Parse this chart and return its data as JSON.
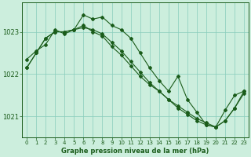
{
  "title": "Graphe pression niveau de la mer (hPa)",
  "background_color": "#cceedd",
  "grid_color": "#88ccbb",
  "line_color": "#1a5c1a",
  "xlim": [
    -0.5,
    23.5
  ],
  "ylim": [
    1020.5,
    1023.7
  ],
  "yticks": [
    1021,
    1022,
    1023
  ],
  "xticks": [
    0,
    1,
    2,
    3,
    4,
    5,
    6,
    7,
    8,
    9,
    10,
    11,
    12,
    13,
    14,
    15,
    16,
    17,
    18,
    19,
    20,
    21,
    22,
    23
  ],
  "series1_x": [
    0,
    1,
    2,
    3,
    4,
    5,
    6,
    7,
    8,
    9,
    10,
    11,
    12,
    13,
    14,
    15,
    16,
    17,
    18,
    19,
    20,
    21,
    22,
    23
  ],
  "series1_y": [
    1022.15,
    1022.5,
    1022.85,
    1023.0,
    1023.0,
    1023.05,
    1023.4,
    1023.3,
    1023.35,
    1023.15,
    1023.05,
    1022.85,
    1022.5,
    1022.15,
    1021.85,
    1021.6,
    1021.95,
    1021.4,
    1021.1,
    1020.8,
    1020.75,
    1021.15,
    1021.5,
    1021.6
  ],
  "series2_x": [
    0,
    1,
    2,
    3,
    4,
    5,
    6,
    7,
    8,
    9,
    10,
    11,
    12,
    13,
    14,
    15,
    16,
    17,
    18,
    19,
    20,
    21,
    22,
    23
  ],
  "series2_y": [
    1022.15,
    1022.5,
    1022.85,
    1023.0,
    1023.0,
    1023.05,
    1023.1,
    1023.05,
    1022.95,
    1022.75,
    1022.55,
    1022.3,
    1022.05,
    1021.8,
    1021.6,
    1021.4,
    1021.2,
    1021.05,
    1020.9,
    1020.8,
    1020.75,
    1020.9,
    1021.2,
    1021.6
  ],
  "series3_x": [
    0,
    1,
    2,
    3,
    4,
    5,
    6,
    7,
    8,
    9,
    10,
    11,
    12,
    13,
    14,
    15,
    16,
    17,
    18,
    19,
    20,
    21,
    22,
    23
  ],
  "series3_y": [
    1022.35,
    1022.55,
    1022.7,
    1023.05,
    1022.95,
    1023.05,
    1023.15,
    1023.0,
    1022.9,
    1022.65,
    1022.45,
    1022.2,
    1021.95,
    1021.75,
    1021.6,
    1021.4,
    1021.25,
    1021.1,
    1020.95,
    1020.85,
    1020.75,
    1020.9,
    1021.2,
    1021.55
  ]
}
